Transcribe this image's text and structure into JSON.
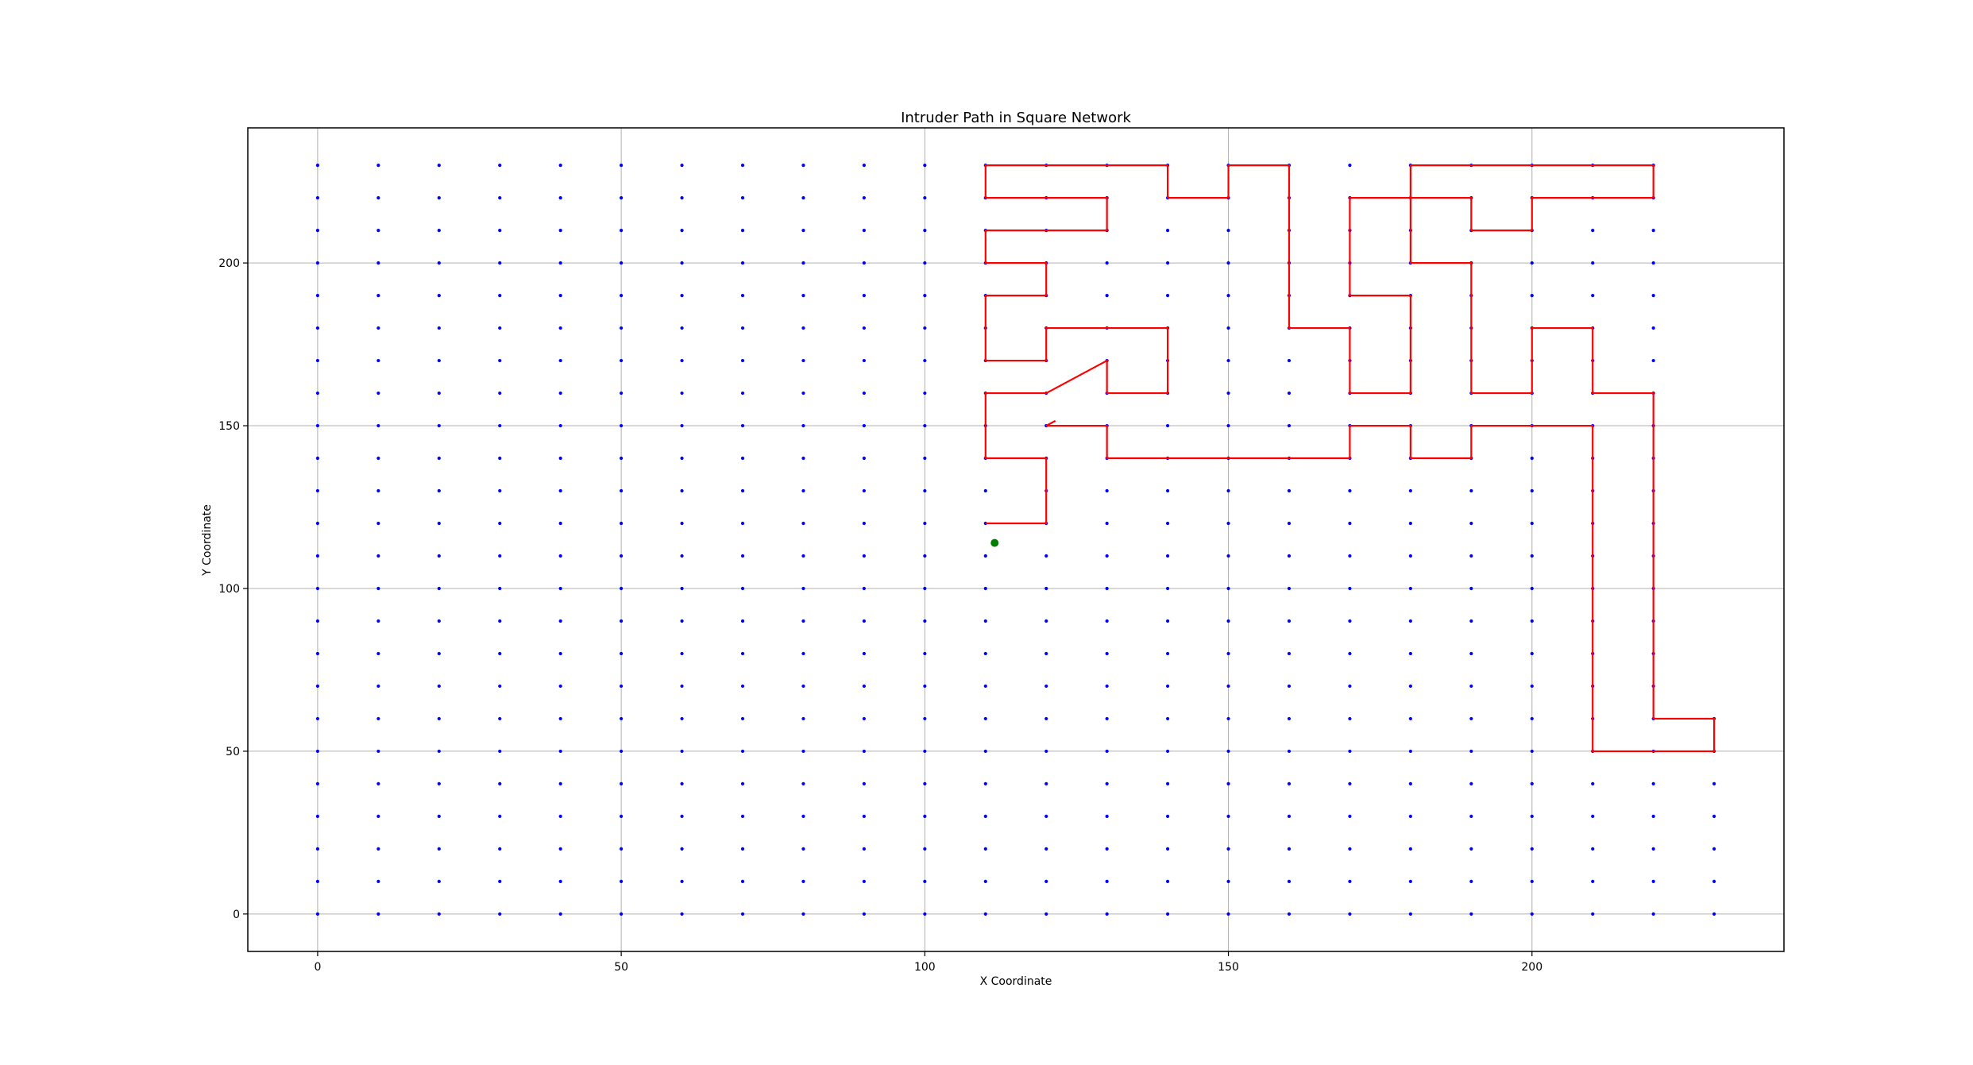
{
  "chart_data": {
    "type": "scatter",
    "title": "Intruder Path in Square Network",
    "xlabel": "X Coordinate",
    "ylabel": "Y Coordinate",
    "xlim": [
      -11.5,
      241.5
    ],
    "ylim": [
      -11.5,
      241.5
    ],
    "x_ticks": [
      0,
      50,
      100,
      150,
      200
    ],
    "y_ticks": [
      0,
      50,
      100,
      150,
      200
    ],
    "grid": true,
    "colors": {
      "nodes": "#0000ff",
      "path": "#ff0000",
      "intruder": "#008000",
      "grid": "#b0b0b0"
    },
    "node_grid": {
      "x_start": 0,
      "x_end": 220,
      "y_start": 0,
      "y_end": 230,
      "step": 10
    },
    "extra_nodes": [
      [
        230,
        0
      ],
      [
        230,
        10
      ],
      [
        230,
        20
      ],
      [
        230,
        30
      ],
      [
        230,
        40
      ],
      [
        230,
        50
      ],
      [
        230,
        60
      ]
    ],
    "intruder_position": [
      111.5,
      114
    ],
    "path": [
      [
        121.5,
        151.5
      ],
      [
        120,
        150
      ],
      [
        130,
        150
      ],
      [
        130,
        140
      ],
      [
        170,
        140
      ],
      [
        170,
        150
      ],
      [
        180,
        150
      ],
      [
        180,
        140
      ],
      [
        190,
        140
      ],
      [
        190,
        150
      ],
      [
        210,
        150
      ],
      [
        210,
        50
      ],
      [
        230,
        50
      ],
      [
        230,
        60
      ],
      [
        220,
        60
      ],
      [
        220,
        160
      ],
      [
        210,
        160
      ],
      [
        210,
        180
      ],
      [
        200,
        180
      ],
      [
        200,
        160
      ],
      [
        190,
        160
      ],
      [
        190,
        200
      ],
      [
        180,
        200
      ],
      [
        180,
        230
      ],
      [
        220,
        230
      ],
      [
        220,
        220
      ],
      [
        200,
        220
      ],
      [
        200,
        210
      ],
      [
        190,
        210
      ],
      [
        190,
        220
      ],
      [
        170,
        220
      ],
      [
        170,
        190
      ],
      [
        180,
        190
      ],
      [
        180,
        160
      ],
      [
        170,
        160
      ],
      [
        170,
        180
      ],
      [
        160,
        180
      ],
      [
        160,
        230
      ],
      [
        150,
        230
      ],
      [
        150,
        220
      ],
      [
        140,
        220
      ],
      [
        140,
        230
      ],
      [
        110,
        230
      ],
      [
        110,
        220
      ],
      [
        130,
        220
      ],
      [
        130,
        210
      ],
      [
        110,
        210
      ],
      [
        110,
        200
      ],
      [
        120,
        200
      ],
      [
        120,
        190
      ],
      [
        110,
        190
      ],
      [
        110,
        170
      ],
      [
        120,
        170
      ],
      [
        120,
        180
      ],
      [
        140,
        180
      ],
      [
        140,
        160
      ],
      [
        130,
        160
      ],
      [
        130,
        170
      ],
      [
        120,
        160
      ],
      [
        110,
        160
      ],
      [
        110,
        140
      ],
      [
        120,
        140
      ],
      [
        120,
        120
      ],
      [
        110,
        120
      ]
    ]
  }
}
